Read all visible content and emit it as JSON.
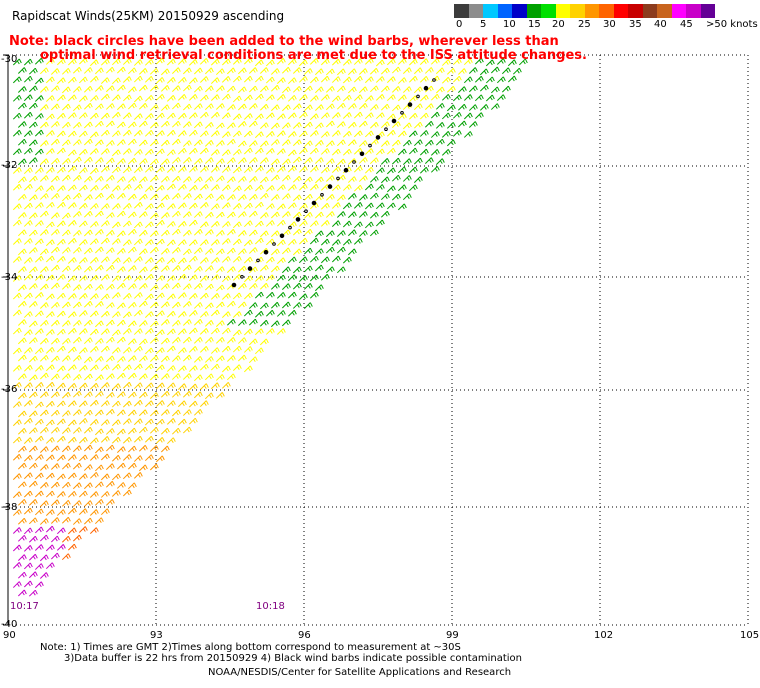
{
  "header": {
    "title": "Rapidscat Winds(25KM) 20150929 ascending",
    "note_line1": "Note: black circles have been added to the wind barbs, wherever less than",
    "note_line2": "optimal wind retrieval conditions are met due to the ISS attitude changes."
  },
  "legend": {
    "colors": [
      "#3c3c3c",
      "#8c8c8c",
      "#00c8ff",
      "#0064ff",
      "#0000c8",
      "#00a000",
      "#00e000",
      "#ffff00",
      "#ffd200",
      "#ff9600",
      "#ff6400",
      "#ff0000",
      "#c80000",
      "#8c3c1e",
      "#c8641e",
      "#ff00ff",
      "#c800c8",
      "#640096"
    ],
    "labels": [
      "0",
      "5",
      "10",
      "15",
      "20",
      "25",
      "30",
      "35",
      "40",
      "45",
      ">50 knots"
    ],
    "units": "knots"
  },
  "map": {
    "lon_ticks": [
      "90",
      "93",
      "96",
      "99",
      "102",
      "105"
    ],
    "lat_ticks": [
      "-30",
      "-32",
      "-34",
      "-36",
      "-38",
      "-40"
    ],
    "time_labels": [
      "10:17",
      "10:18"
    ]
  },
  "footer": {
    "line1": "Note: 1) Times are GMT 2)Times along bottom correspond to measurement at ~30S",
    "line2": "3)Data buffer is 22 hrs from 20150929 4) Black wind barbs indicate possible contamination",
    "credit": "NOAA/NESDIS/Center for Satellite Applications and Research"
  }
}
